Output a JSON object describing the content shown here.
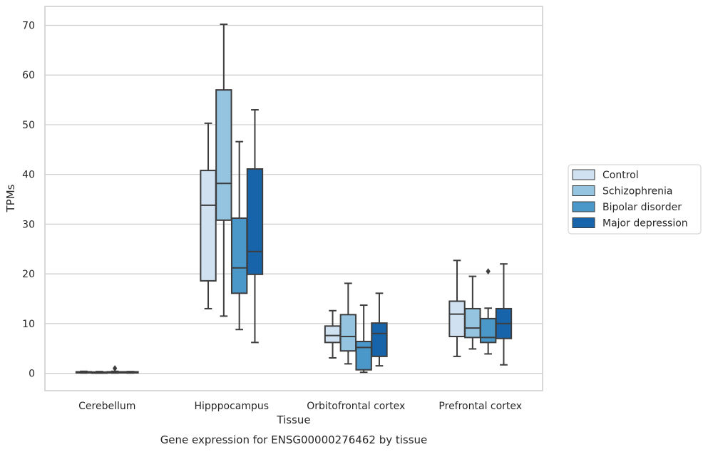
{
  "caption": "Gene expression for ENSG00000276462 by tissue",
  "chart_data": {
    "type": "box",
    "title": "",
    "xlabel": "Tissue",
    "ylabel": "TPMs",
    "ylim": [
      -3.5,
      73.8
    ],
    "yticks": [
      0,
      10,
      20,
      30,
      40,
      50,
      60,
      70
    ],
    "grid": "horizontal",
    "legend_position": "outside-right",
    "categories": [
      "Cerebellum",
      "Hipppocampus",
      "Orbitofrontal cortex",
      "Prefrontal cortex"
    ],
    "series": [
      {
        "name": "Control",
        "color": "#d0e1f2",
        "boxes": [
          {
            "whisker_low": 0.05,
            "q1": 0.1,
            "median": 0.2,
            "q3": 0.3,
            "whisker_high": 0.4,
            "outliers": []
          },
          {
            "whisker_low": 13.0,
            "q1": 18.6,
            "median": 33.8,
            "q3": 40.8,
            "whisker_high": 50.3,
            "outliers": []
          },
          {
            "whisker_low": 3.1,
            "q1": 6.2,
            "median": 7.6,
            "q3": 9.5,
            "whisker_high": 12.6,
            "outliers": []
          },
          {
            "whisker_low": 3.4,
            "q1": 7.4,
            "median": 11.9,
            "q3": 14.5,
            "whisker_high": 22.7,
            "outliers": []
          }
        ]
      },
      {
        "name": "Schizophrenia",
        "color": "#94c4df",
        "boxes": [
          {
            "whisker_low": 0.05,
            "q1": 0.1,
            "median": 0.15,
            "q3": 0.25,
            "whisker_high": 0.35,
            "outliers": []
          },
          {
            "whisker_low": 11.5,
            "q1": 30.8,
            "median": 38.2,
            "q3": 57.0,
            "whisker_high": 70.2,
            "outliers": []
          },
          {
            "whisker_low": 1.9,
            "q1": 4.5,
            "median": 7.4,
            "q3": 11.8,
            "whisker_high": 18.1,
            "outliers": []
          },
          {
            "whisker_low": 4.9,
            "q1": 7.2,
            "median": 9.1,
            "q3": 13.0,
            "whisker_high": 19.5,
            "outliers": []
          }
        ]
      },
      {
        "name": "Bipolar disorder",
        "color": "#4a98c9",
        "boxes": [
          {
            "whisker_low": 0.05,
            "q1": 0.1,
            "median": 0.15,
            "q3": 0.3,
            "whisker_high": 0.4,
            "outliers": [
              1.0
            ]
          },
          {
            "whisker_low": 8.8,
            "q1": 16.1,
            "median": 21.2,
            "q3": 31.2,
            "whisker_high": 46.6,
            "outliers": []
          },
          {
            "whisker_low": 0.2,
            "q1": 0.7,
            "median": 5.2,
            "q3": 6.4,
            "whisker_high": 13.7,
            "outliers": []
          },
          {
            "whisker_low": 3.9,
            "q1": 6.2,
            "median": 7.2,
            "q3": 11.0,
            "whisker_high": 13.1,
            "outliers": [
              20.5
            ]
          }
        ]
      },
      {
        "name": "Major depression",
        "color": "#1764ab",
        "boxes": [
          {
            "whisker_low": 0.05,
            "q1": 0.1,
            "median": 0.2,
            "q3": 0.3,
            "whisker_high": 0.35,
            "outliers": []
          },
          {
            "whisker_low": 6.2,
            "q1": 19.9,
            "median": 24.5,
            "q3": 41.1,
            "whisker_high": 53.0,
            "outliers": []
          },
          {
            "whisker_low": 1.5,
            "q1": 3.4,
            "median": 8.0,
            "q3": 10.1,
            "whisker_high": 16.1,
            "outliers": []
          },
          {
            "whisker_low": 1.7,
            "q1": 7.0,
            "median": 10.0,
            "q3": 13.0,
            "whisker_high": 22.0,
            "outliers": []
          }
        ]
      }
    ]
  }
}
